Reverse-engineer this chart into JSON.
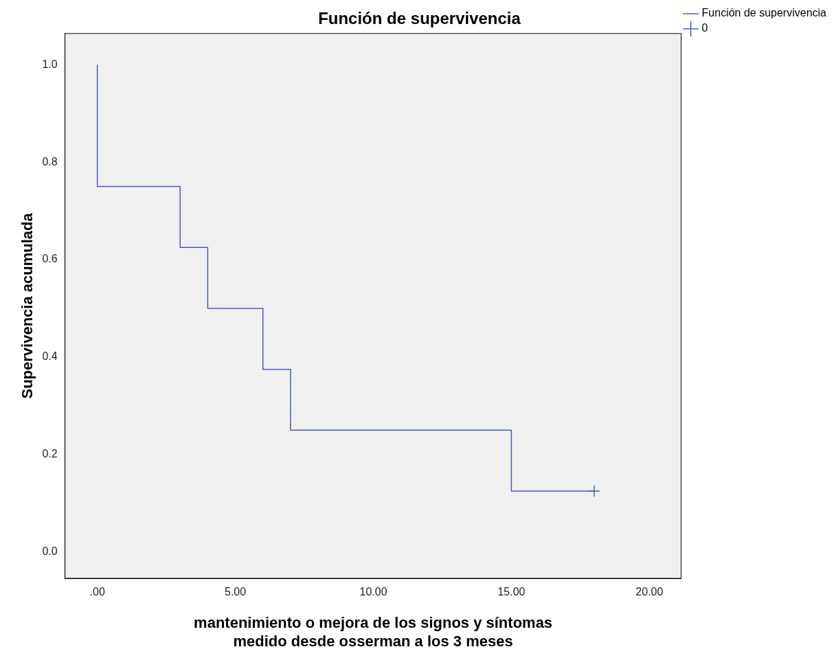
{
  "chart_data": {
    "type": "step",
    "title": "Función de supervivencia",
    "xlabel": "mantenimiento o mejora de los signos y síntomas\nmedido desde osserman a los 3 meses",
    "ylabel": "Supervivencia acumulada",
    "xlim": [
      -1.17,
      21.15
    ],
    "ylim": [
      -0.054,
      1.064
    ],
    "xticks": [
      {
        "value": 0,
        "label": ".00"
      },
      {
        "value": 5,
        "label": "5.00"
      },
      {
        "value": 10,
        "label": "10.00"
      },
      {
        "value": 15,
        "label": "15.00"
      },
      {
        "value": 20,
        "label": "20.00"
      }
    ],
    "yticks": [
      {
        "value": 0,
        "label": "0.0"
      },
      {
        "value": 0.2,
        "label": "0.2"
      },
      {
        "value": 0.4,
        "label": "0.4"
      },
      {
        "value": 0.6,
        "label": "0.6"
      },
      {
        "value": 0.8,
        "label": "0.8"
      },
      {
        "value": 1,
        "label": "1.0"
      }
    ],
    "grid": false,
    "legend": "top right",
    "marker": "none",
    "line_style": "solid",
    "series": [
      {
        "name": "Función de supervivencia",
        "color": "#4a5cb8",
        "x": [
          0,
          0,
          3,
          4,
          6,
          7,
          15,
          18
        ],
        "values": [
          1.0,
          0.75,
          0.625,
          0.5,
          0.375,
          0.25,
          0.125,
          0.125
        ]
      },
      {
        "name": "0",
        "type": "scatter",
        "marker": "cross",
        "color": "#4a5cb8",
        "x": [
          18
        ],
        "values": [
          0.125
        ]
      }
    ]
  }
}
